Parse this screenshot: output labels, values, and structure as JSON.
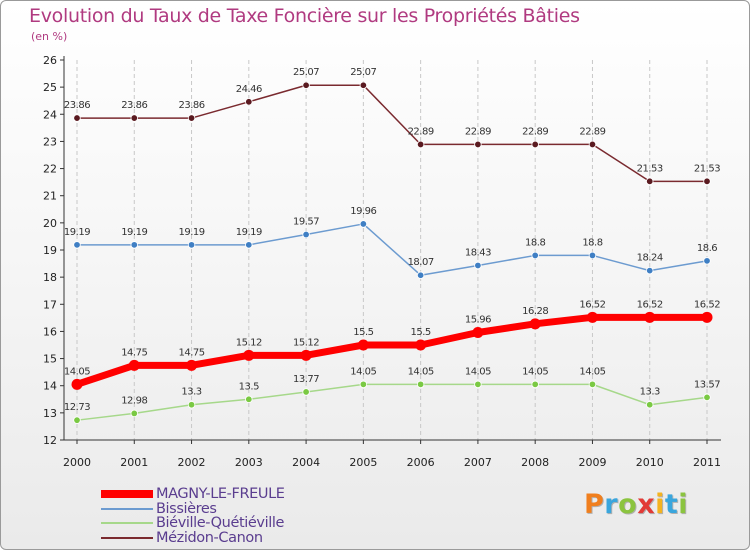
{
  "title": "Evolution du Taux de Taxe Foncière sur les Propriétés Bâties",
  "unit": "(en %)",
  "logo": {
    "text": "Proxiti",
    "letters": [
      {
        "ch": "P",
        "color": "#f07f1e"
      },
      {
        "ch": "r",
        "color": "#3aa6dd"
      },
      {
        "ch": "o",
        "color": "#8bc43f"
      },
      {
        "ch": "x",
        "color": "#e23a36"
      },
      {
        "ch": "i",
        "color": "#f4b31f"
      },
      {
        "ch": "t",
        "color": "#3aa6dd"
      },
      {
        "ch": "i",
        "color": "#8bc43f"
      }
    ]
  },
  "chart_data": {
    "type": "line",
    "x": [
      "2000",
      "2001",
      "2002",
      "2003",
      "2004",
      "2005",
      "2006",
      "2007",
      "2008",
      "2009",
      "2010",
      "2011"
    ],
    "ylim": [
      12,
      26
    ],
    "yticks": [
      12,
      13,
      14,
      15,
      16,
      17,
      18,
      19,
      20,
      21,
      22,
      23,
      24,
      25,
      26
    ],
    "grid": "vertical dashed",
    "legend": "bottom-left",
    "series": [
      {
        "name": "Mézidon-Canon",
        "color": "#7a2a2f",
        "marker": "#5a1a20",
        "width": 1.5,
        "values": [
          23.86,
          23.86,
          23.86,
          24.46,
          25.07,
          25.07,
          22.89,
          22.89,
          22.89,
          22.89,
          21.53,
          21.53
        ],
        "labels": [
          "23.86",
          "23.86",
          "23.86",
          "24.46",
          "25.07",
          "25.07",
          "22.89",
          "22.89",
          "22.89",
          "22.89",
          "21.53",
          "21.53"
        ]
      },
      {
        "name": "Bissières",
        "color": "#6c9bd0",
        "marker": "#3f7fc4",
        "width": 1.5,
        "values": [
          19.19,
          19.19,
          19.19,
          19.19,
          19.57,
          19.96,
          18.07,
          18.43,
          18.8,
          18.8,
          18.24,
          18.6
        ],
        "labels": [
          "19.19",
          "19.19",
          "19.19",
          "19.19",
          "19.57",
          "19.96",
          "18.07",
          "18.43",
          "18.8",
          "18.8",
          "18.24",
          "18.6"
        ]
      },
      {
        "name": "Biéville-Quétiéville",
        "color": "#a6d88a",
        "marker": "#7ac943",
        "width": 1.5,
        "values": [
          12.73,
          12.98,
          13.3,
          13.5,
          13.77,
          14.05,
          14.05,
          14.05,
          14.05,
          14.05,
          13.3,
          13.57
        ],
        "labels": [
          "12.73",
          "12.98",
          "13.3",
          "13.5",
          "13.77",
          "14.05",
          "14.05",
          "14.05",
          "14.05",
          "14.05",
          "13.3",
          "13.57"
        ]
      },
      {
        "name": "MAGNY-LE-FREULE",
        "color": "#ff0000",
        "marker": "#e00000",
        "width": 7,
        "values": [
          14.05,
          14.75,
          14.75,
          15.12,
          15.12,
          15.5,
          15.5,
          15.96,
          16.28,
          16.52,
          16.52,
          16.52
        ],
        "labels": [
          "14.05",
          "14.75",
          "14.75",
          "15.12",
          "15.12",
          "15.5",
          "15.5",
          "15.96",
          "16.28",
          "16.52",
          "16.52",
          "16.52"
        ]
      }
    ]
  },
  "legend_items": [
    {
      "label": "MAGNY-LE-FREULE",
      "color": "#ff0000",
      "width": 8
    },
    {
      "label": "Bissières",
      "color": "#6c9bd0",
      "width": 2
    },
    {
      "label": "Biéville-Quétiéville",
      "color": "#a6d88a",
      "width": 2
    },
    {
      "label": "Mézidon-Canon",
      "color": "#7a2a2f",
      "width": 2
    }
  ]
}
